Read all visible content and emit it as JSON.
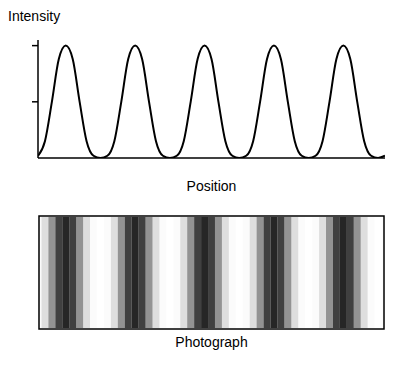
{
  "chart_data": {
    "type": "line",
    "y_label": "Intensity",
    "x_label": "Position",
    "x": [
      0,
      0.2,
      0.4,
      0.6,
      0.8,
      1.0,
      1.2,
      1.4,
      1.6,
      1.8,
      2.0,
      2.2,
      2.4,
      2.6,
      2.8,
      3.0,
      3.2,
      3.4,
      3.6,
      3.8,
      4.0,
      4.2,
      4.4,
      4.6,
      4.8,
      5.0,
      5.2,
      5.4,
      5.6,
      5.8,
      6.0,
      6.2,
      6.4,
      6.6,
      6.8,
      7.0,
      7.2,
      7.4,
      7.6,
      7.8,
      8.0,
      8.2,
      8.4,
      8.6,
      8.8,
      9.0,
      9.2,
      9.4,
      9.6,
      9.8,
      10.0
    ],
    "values": [
      0.02,
      0.15,
      0.5,
      0.88,
      1,
      0.88,
      0.5,
      0.15,
      0.02,
      0,
      0.02,
      0.15,
      0.5,
      0.88,
      1,
      0.88,
      0.5,
      0.15,
      0.02,
      0,
      0.02,
      0.15,
      0.5,
      0.88,
      1,
      0.88,
      0.5,
      0.15,
      0.02,
      0,
      0.02,
      0.15,
      0.5,
      0.88,
      1,
      0.88,
      0.5,
      0.15,
      0.02,
      0,
      0.02,
      0.15,
      0.5,
      0.88,
      1,
      0.88,
      0.5,
      0.15,
      0.02,
      0,
      0.02
    ],
    "color": "#000000",
    "xlim": [
      0,
      10
    ],
    "xticks": [],
    "ylim": [
      0,
      1.05
    ],
    "yticks": [
      0.5,
      1
    ],
    "tick_labels": false,
    "grid": false
  },
  "photograph": {
    "caption": "Photograph"
  }
}
